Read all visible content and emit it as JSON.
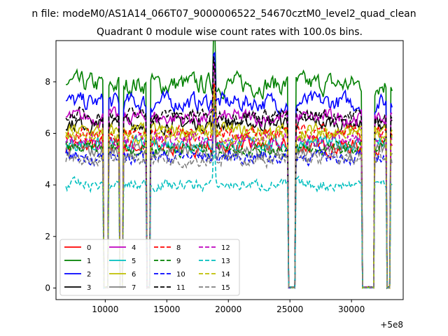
{
  "figure": {
    "suptitle": "n file: modeM0/AS1A14_066T07_9000006522_54670cztM0_level2_quad_clean"
  },
  "chart_data": {
    "type": "line",
    "title": "Quadrant 0 module wise count rates with 100.0s bins.",
    "xlabel": "",
    "ylabel": "",
    "xlim": [
      6000,
      34200
    ],
    "ylim": [
      -0.45,
      9.6
    ],
    "x_offset_label": "+5e8",
    "xticks": [
      10000,
      15000,
      20000,
      25000,
      30000
    ],
    "xtick_labels": [
      "10000",
      "15000",
      "20000",
      "25000",
      "30000"
    ],
    "yticks": [
      0,
      2,
      4,
      6,
      8
    ],
    "ytick_labels": [
      "0",
      "2",
      "4",
      "6",
      "8"
    ],
    "grid": false,
    "legend_position": "lower-left",
    "legend_columns": 4,
    "data_start": 6800,
    "data_end": 33300,
    "bin_width": 100,
    "gaps": [
      {
        "start": 9900,
        "end": 10200
      },
      {
        "start": 11200,
        "end": 11400
      },
      {
        "start": 13400,
        "end": 13600
      },
      {
        "start": 24850,
        "end": 25100
      },
      {
        "start": 25200,
        "end": 25400
      },
      {
        "start": 30900,
        "end": 31500
      },
      {
        "start": 31600,
        "end": 31800
      },
      {
        "start": 32900,
        "end": 33100
      }
    ],
    "spikes": [
      {
        "x": 18850,
        "factor": 1.3
      },
      {
        "x": 25200,
        "factor": 1.45
      },
      {
        "x": 31500,
        "factor": 1.3
      },
      {
        "x": 33000,
        "factor": 1.2
      }
    ],
    "series": [
      {
        "name": "0",
        "color": "#ff0000",
        "dash": "solid",
        "mean": 5.5,
        "noise": 0.35
      },
      {
        "name": "1",
        "color": "#008000",
        "dash": "solid",
        "mean": 7.9,
        "noise": 0.45
      },
      {
        "name": "2",
        "color": "#0000ff",
        "dash": "solid",
        "mean": 7.2,
        "noise": 0.4
      },
      {
        "name": "3",
        "color": "#000000",
        "dash": "solid",
        "mean": 6.4,
        "noise": 0.35
      },
      {
        "name": "4",
        "color": "#bf00bf",
        "dash": "solid",
        "mean": 6.6,
        "noise": 0.35
      },
      {
        "name": "5",
        "color": "#00bfbf",
        "dash": "solid",
        "mean": 5.6,
        "noise": 0.3
      },
      {
        "name": "6",
        "color": "#bfbf00",
        "dash": "solid",
        "mean": 6.1,
        "noise": 0.3
      },
      {
        "name": "7",
        "color": "#808080",
        "dash": "solid",
        "mean": 5.3,
        "noise": 0.3
      },
      {
        "name": "8",
        "color": "#ff0000",
        "dash": "dashed",
        "mean": 6.0,
        "noise": 0.3
      },
      {
        "name": "9",
        "color": "#008000",
        "dash": "dashed",
        "mean": 5.4,
        "noise": 0.3
      },
      {
        "name": "10",
        "color": "#0000ff",
        "dash": "dashed",
        "mean": 5.1,
        "noise": 0.3
      },
      {
        "name": "11",
        "color": "#000000",
        "dash": "dashed",
        "mean": 6.7,
        "noise": 0.3
      },
      {
        "name": "12",
        "color": "#bf00bf",
        "dash": "dashed",
        "mean": 5.7,
        "noise": 0.3
      },
      {
        "name": "13",
        "color": "#00bfbf",
        "dash": "dashed",
        "mean": 4.0,
        "noise": 0.25
      },
      {
        "name": "14",
        "color": "#bfbf00",
        "dash": "dashed",
        "mean": 5.9,
        "noise": 0.3
      },
      {
        "name": "15",
        "color": "#808080",
        "dash": "dashed",
        "mean": 5.0,
        "noise": 0.3
      }
    ]
  }
}
